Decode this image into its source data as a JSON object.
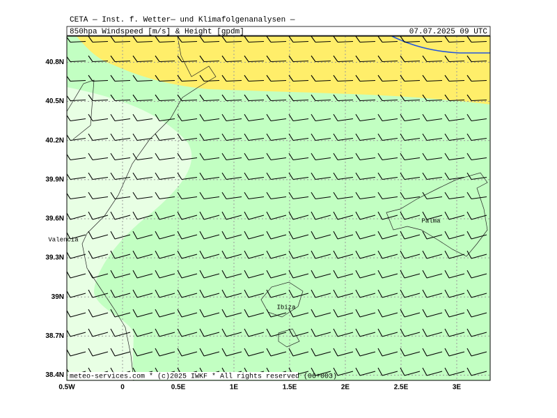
{
  "header": {
    "institute": "CETA — Inst. f. Wetter— und Klimafolgenanalysen —",
    "title": "850hpa Windspeed [m/s] & Height [gpdm]",
    "valid_time": "07.07.2025 09 UTC"
  },
  "map": {
    "lon_range": [
      -0.5,
      3.3
    ],
    "lat_range": [
      38.36,
      41.0
    ],
    "lon_ticks": [
      {
        "value": -0.5,
        "label": "0.5W"
      },
      0,
      {
        "value": 0.5,
        "label": "0.5E"
      },
      {
        "value": 1,
        "label": "1E"
      },
      {
        "value": 1.5,
        "label": "1.5E"
      },
      {
        "value": 2,
        "label": "2E"
      },
      {
        "value": 2.5,
        "label": "2.5E"
      },
      {
        "value": 3,
        "label": "3E"
      }
    ],
    "lat_ticks": [
      {
        "value": 38.4,
        "label": "38.4N"
      },
      {
        "value": 38.7,
        "label": "38.7N"
      },
      {
        "value": 39,
        "label": "39N"
      },
      {
        "value": 39.3,
        "label": "39.3N"
      },
      {
        "value": 39.6,
        "label": "39.6N"
      },
      {
        "value": 39.9,
        "label": "39.9N"
      },
      {
        "value": 40.2,
        "label": "40.2N"
      },
      {
        "value": 40.5,
        "label": "40.5N"
      },
      {
        "value": 40.8,
        "label": "40.8N"
      }
    ],
    "places": [
      "Valencia",
      "Palma",
      "Ibiza"
    ]
  },
  "footer": "meteo-services.com * (c)2025 IWKF * All rights reserved (06+003)"
}
